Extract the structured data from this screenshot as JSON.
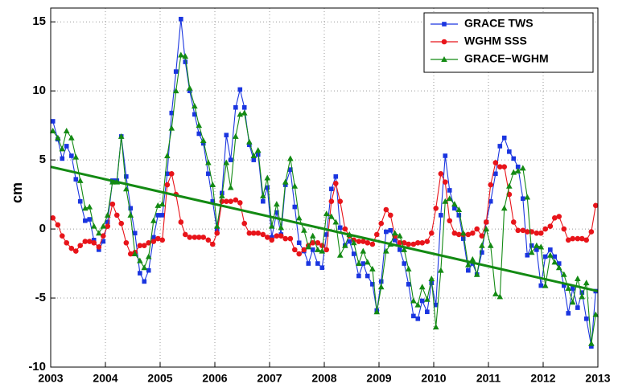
{
  "chart_data": {
    "type": "line",
    "ylabel": "cm",
    "xlim": [
      2003,
      2013
    ],
    "ylim": [
      -10,
      16
    ],
    "xticks": [
      2003,
      2004,
      2005,
      2006,
      2007,
      2008,
      2009,
      2010,
      2011,
      2012,
      2013
    ],
    "yticks": [
      -10,
      -5,
      0,
      5,
      10,
      15
    ],
    "grid": true,
    "legend": "upper right",
    "x": [
      2003.04,
      2003.13,
      2003.21,
      2003.29,
      2003.38,
      2003.46,
      2003.54,
      2003.63,
      2003.71,
      2003.79,
      2003.88,
      2003.96,
      2004.04,
      2004.13,
      2004.21,
      2004.29,
      2004.38,
      2004.46,
      2004.54,
      2004.63,
      2004.71,
      2004.79,
      2004.88,
      2004.96,
      2005.04,
      2005.13,
      2005.21,
      2005.29,
      2005.38,
      2005.46,
      2005.54,
      2005.63,
      2005.71,
      2005.79,
      2005.88,
      2005.96,
      2006.04,
      2006.13,
      2006.21,
      2006.29,
      2006.38,
      2006.46,
      2006.54,
      2006.63,
      2006.71,
      2006.79,
      2006.88,
      2006.96,
      2007.04,
      2007.13,
      2007.21,
      2007.29,
      2007.38,
      2007.46,
      2007.54,
      2007.63,
      2007.71,
      2007.79,
      2007.88,
      2007.96,
      2008.04,
      2008.13,
      2008.21,
      2008.29,
      2008.38,
      2008.46,
      2008.54,
      2008.63,
      2008.71,
      2008.79,
      2008.88,
      2008.96,
      2009.04,
      2009.13,
      2009.21,
      2009.29,
      2009.38,
      2009.46,
      2009.54,
      2009.63,
      2009.71,
      2009.79,
      2009.88,
      2009.96,
      2010.04,
      2010.13,
      2010.21,
      2010.29,
      2010.38,
      2010.46,
      2010.54,
      2010.63,
      2010.71,
      2010.79,
      2010.88,
      2010.96,
      2011.04,
      2011.13,
      2011.21,
      2011.29,
      2011.38,
      2011.46,
      2011.54,
      2011.63,
      2011.71,
      2011.79,
      2011.88,
      2011.96,
      2012.04,
      2012.13,
      2012.21,
      2012.29,
      2012.38,
      2012.46,
      2012.54,
      2012.63,
      2012.71,
      2012.79,
      2012.88,
      2012.96
    ],
    "series": [
      {
        "name": "GRACE TWS",
        "color": "#1a35e0",
        "marker": "square",
        "values": [
          7.8,
          6.5,
          5.1,
          6.0,
          5.3,
          3.6,
          2.0,
          0.6,
          0.7,
          -0.8,
          -1.5,
          -0.9,
          0.5,
          3.5,
          3.5,
          6.7,
          3.8,
          1.5,
          -0.3,
          -3.2,
          -3.8,
          -3.0,
          -0.6,
          1.0,
          1.0,
          4.0,
          8.4,
          11.4,
          15.2,
          12.1,
          10.0,
          8.3,
          6.9,
          6.2,
          4.0,
          2.0,
          -0.1,
          2.6,
          6.8,
          5.0,
          8.8,
          10.1,
          8.8,
          6.1,
          5.0,
          5.4,
          2.0,
          3.0,
          -0.6,
          1.2,
          -0.4,
          3.2,
          4.3,
          1.6,
          -1.0,
          -1.6,
          -2.5,
          -1.5,
          -2.5,
          -2.8,
          -0.4,
          2.9,
          3.8,
          0.1,
          -1.2,
          -0.9,
          -1.8,
          -3.4,
          -2.5,
          -3.4,
          -4.0,
          -5.9,
          -3.8,
          -0.2,
          -0.1,
          -0.8,
          -1.5,
          -2.5,
          -4.0,
          -6.3,
          -6.5,
          -5.2,
          -6.0,
          -3.9,
          -5.5,
          1.0,
          5.3,
          2.8,
          1.5,
          1.0,
          -0.7,
          -3.0,
          -2.5,
          -3.3,
          -1.7,
          0.5,
          2.0,
          4.0,
          6.0,
          6.6,
          5.6,
          5.1,
          4.5,
          2.2,
          -1.9,
          -1.2,
          -1.5,
          -4.1,
          -2.0,
          -1.5,
          -2.0,
          -2.5,
          -4.1,
          -6.1,
          -4.3,
          -5.7,
          -4.6,
          -6.5,
          -8.5,
          -4.5
        ]
      },
      {
        "name": "WGHM SSS",
        "color": "#e8141a",
        "marker": "circle",
        "values": [
          0.8,
          0.3,
          -0.5,
          -1.0,
          -1.4,
          -1.6,
          -1.2,
          -0.9,
          -0.9,
          -1.0,
          -1.3,
          -0.5,
          0.2,
          1.8,
          1.0,
          0.4,
          -1.0,
          -1.8,
          -1.7,
          -1.2,
          -1.2,
          -1.0,
          -0.9,
          -0.7,
          -0.8,
          3.2,
          4.0,
          2.5,
          0.5,
          -0.4,
          -0.6,
          -0.6,
          -0.6,
          -0.6,
          -0.8,
          -1.1,
          -0.3,
          2.0,
          2.0,
          2.0,
          2.1,
          1.9,
          0.4,
          -0.3,
          -0.3,
          -0.3,
          -0.4,
          -0.6,
          -0.8,
          -0.5,
          -0.5,
          -0.7,
          -0.7,
          -1.5,
          -1.8,
          -1.5,
          -1.2,
          -1.0,
          -1.0,
          -1.2,
          -1.5,
          2.0,
          3.3,
          2.0,
          0.0,
          -0.5,
          -0.8,
          -0.9,
          -0.9,
          -1.0,
          -1.1,
          -0.4,
          0.4,
          1.4,
          1.0,
          -0.5,
          -1.0,
          -1.0,
          -1.1,
          -1.1,
          -1.0,
          -1.0,
          -0.9,
          -0.3,
          1.5,
          4.0,
          3.4,
          0.6,
          -0.3,
          -0.4,
          -0.4,
          -0.4,
          -0.3,
          0.0,
          -0.5,
          0.5,
          3.2,
          4.8,
          4.5,
          4.5,
          2.5,
          0.5,
          -0.1,
          -0.1,
          -0.2,
          -0.2,
          -0.3,
          -0.3,
          0.0,
          0.2,
          0.8,
          0.9,
          0.0,
          -0.8,
          -0.7,
          -0.7,
          -0.7,
          -0.8,
          -0.2,
          1.7
        ]
      },
      {
        "name": "GRACE−WGHM",
        "color": "#138a13",
        "marker": "triangle",
        "values": [
          7.1,
          6.6,
          5.8,
          7.1,
          6.6,
          5.2,
          3.5,
          1.5,
          1.6,
          0.2,
          -0.3,
          0.2,
          1.0,
          3.4,
          3.4,
          6.7,
          2.9,
          1.0,
          -1.8,
          -2.3,
          -2.8,
          -2.0,
          0.6,
          1.7,
          1.8,
          5.3,
          7.3,
          10.0,
          12.6,
          12.5,
          10.2,
          8.9,
          7.5,
          6.4,
          4.8,
          3.2,
          0.2,
          2.4,
          4.8,
          3.0,
          6.7,
          8.3,
          8.4,
          6.3,
          5.3,
          5.7,
          2.4,
          3.7,
          0.2,
          1.8,
          0.1,
          3.4,
          5.1,
          3.1,
          0.8,
          -0.1,
          -1.3,
          -0.5,
          -1.5,
          -1.6,
          1.1,
          0.9,
          0.5,
          -1.9,
          -1.2,
          -0.4,
          -1.0,
          -2.5,
          -1.6,
          -2.4,
          -2.9,
          -6.0,
          -4.2,
          -1.6,
          -1.1,
          -0.3,
          -0.5,
          -1.5,
          -2.9,
          -5.2,
          -5.5,
          -4.2,
          -5.1,
          -3.6,
          -7.1,
          -3.0,
          2.0,
          2.2,
          1.8,
          1.4,
          -0.3,
          -2.6,
          -2.2,
          -3.3,
          -1.2,
          0.0,
          -1.2,
          -4.7,
          -4.9,
          1.5,
          3.1,
          4.1,
          4.2,
          4.4,
          2.3,
          -1.7,
          -1.2,
          -1.3,
          -4.1,
          -1.9,
          -2.4,
          -2.8,
          -3.3,
          -4.3,
          -5.3,
          -3.6,
          -4.9,
          -3.9,
          -8.3,
          -6.2
        ]
      }
    ],
    "trend": {
      "color": "#138a13",
      "x": [
        2003,
        2013
      ],
      "values": [
        4.5,
        -4.5
      ]
    }
  }
}
